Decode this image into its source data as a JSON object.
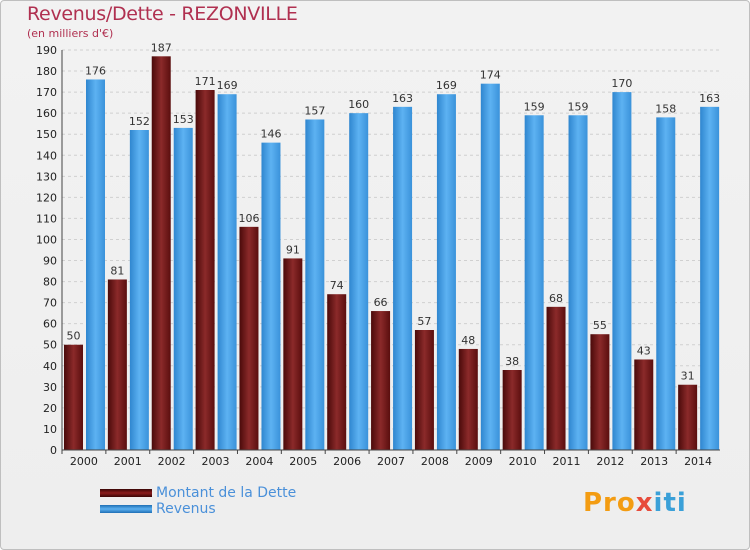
{
  "header": {
    "title": "Revenus/Dette - REZONVILLE",
    "subtitle": "(en milliers d'€)"
  },
  "chart_data": {
    "type": "bar",
    "categories": [
      "2000",
      "2001",
      "2002",
      "2003",
      "2004",
      "2005",
      "2006",
      "2007",
      "2008",
      "2009",
      "2010",
      "2011",
      "2012",
      "2013",
      "2014"
    ],
    "series": [
      {
        "name": "Montant de la Dette",
        "values": [
          50,
          81,
          187,
          171,
          106,
          91,
          74,
          66,
          57,
          48,
          38,
          68,
          55,
          43,
          31
        ],
        "color": "#8b1c1c"
      },
      {
        "name": "Revenus",
        "values": [
          176,
          152,
          153,
          169,
          146,
          157,
          160,
          163,
          169,
          174,
          159,
          159,
          170,
          158,
          163
        ],
        "color": "#4ea6ea"
      }
    ],
    "ylim": [
      0,
      190
    ],
    "yticks": [
      0,
      10,
      20,
      30,
      40,
      50,
      60,
      70,
      80,
      90,
      100,
      110,
      120,
      130,
      140,
      150,
      160,
      170,
      180,
      190
    ],
    "grid": true,
    "legend": "bottom-left"
  },
  "logo": {
    "parts": [
      "Pro",
      "x",
      "iti"
    ]
  }
}
